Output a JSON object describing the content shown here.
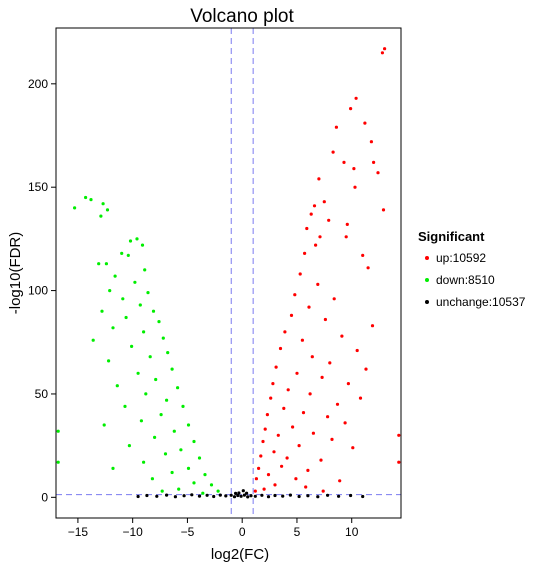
{
  "chart_data": {
    "type": "scatter",
    "title": "Volcano plot",
    "xlabel": "log2(FC)",
    "ylabel": "-log10(FDR)",
    "xlim": [
      -17,
      14.5
    ],
    "ylim": [
      -10,
      227
    ],
    "x_ticks": [
      -15,
      -10,
      -5,
      0,
      5,
      10
    ],
    "y_ticks": [
      0,
      50,
      100,
      150,
      200
    ],
    "grid": false,
    "threshold_lines": {
      "x": [
        -1,
        1
      ],
      "y": 1.3,
      "color": "#7b7bf0",
      "style": "dashed"
    },
    "legend": {
      "title": "Significant",
      "placement": "right",
      "entries": [
        {
          "label": "up:10592",
          "color": "#ff0000"
        },
        {
          "label": "down:8510",
          "color": "#00ee00"
        },
        {
          "label": "unchange:10537",
          "color": "#000000"
        }
      ]
    },
    "series": [
      {
        "name": "up:10592",
        "color": "#ff0000",
        "points": [
          [
            12.8,
            215
          ],
          [
            13.0,
            217
          ],
          [
            10.4,
            193
          ],
          [
            9.9,
            188
          ],
          [
            11.2,
            181
          ],
          [
            8.6,
            179
          ],
          [
            11.8,
            172
          ],
          [
            8.3,
            167
          ],
          [
            12.0,
            162
          ],
          [
            9.3,
            162
          ],
          [
            10.2,
            159
          ],
          [
            12.4,
            157
          ],
          [
            7.0,
            154
          ],
          [
            10.3,
            150
          ],
          [
            12.9,
            139
          ],
          [
            7.5,
            143
          ],
          [
            6.6,
            141
          ],
          [
            6.3,
            137
          ],
          [
            7.9,
            134
          ],
          [
            9.6,
            132
          ],
          [
            5.9,
            130
          ],
          [
            7.1,
            126
          ],
          [
            9.5,
            126
          ],
          [
            6.7,
            122
          ],
          [
            5.7,
            118
          ],
          [
            11.0,
            117
          ],
          [
            11.5,
            111
          ],
          [
            5.3,
            108
          ],
          [
            6.9,
            103
          ],
          [
            4.8,
            98
          ],
          [
            8.4,
            96
          ],
          [
            6.1,
            92
          ],
          [
            11.9,
            83
          ],
          [
            4.5,
            88
          ],
          [
            7.6,
            86
          ],
          [
            3.9,
            80
          ],
          [
            9.1,
            78
          ],
          [
            5.5,
            76
          ],
          [
            10.5,
            71
          ],
          [
            3.5,
            72
          ],
          [
            6.4,
            68
          ],
          [
            8.0,
            65
          ],
          [
            11.3,
            62
          ],
          [
            3.1,
            63
          ],
          [
            5.0,
            60
          ],
          [
            7.3,
            58
          ],
          [
            9.7,
            55
          ],
          [
            2.8,
            55
          ],
          [
            4.2,
            52
          ],
          [
            6.2,
            50
          ],
          [
            10.8,
            48
          ],
          [
            2.6,
            48
          ],
          [
            8.7,
            45
          ],
          [
            3.8,
            43
          ],
          [
            5.6,
            41
          ],
          [
            7.8,
            39
          ],
          [
            2.3,
            40
          ],
          [
            9.4,
            36
          ],
          [
            4.6,
            34
          ],
          [
            2.1,
            33
          ],
          [
            6.5,
            31
          ],
          [
            3.3,
            30
          ],
          [
            8.2,
            28
          ],
          [
            1.9,
            27
          ],
          [
            5.2,
            25
          ],
          [
            10.1,
            24
          ],
          [
            2.9,
            22
          ],
          [
            4.1,
            19
          ],
          [
            7.2,
            18
          ],
          [
            1.7,
            20
          ],
          [
            3.6,
            15
          ],
          [
            6.0,
            13
          ],
          [
            1.5,
            14
          ],
          [
            2.4,
            11
          ],
          [
            4.9,
            9
          ],
          [
            8.9,
            8
          ],
          [
            1.3,
            9
          ],
          [
            3.0,
            6
          ],
          [
            5.8,
            5
          ],
          [
            2.0,
            4
          ],
          [
            1.2,
            3
          ],
          [
            7.4,
            3
          ],
          [
            14.3,
            30
          ],
          [
            14.3,
            17
          ]
        ]
      },
      {
        "name": "down:8510",
        "color": "#00ee00",
        "points": [
          [
            -14.3,
            145
          ],
          [
            -13.8,
            144
          ],
          [
            -15.3,
            140
          ],
          [
            -12.7,
            142
          ],
          [
            -12.3,
            139
          ],
          [
            -12.9,
            136
          ],
          [
            -9.6,
            125
          ],
          [
            -10.2,
            124
          ],
          [
            -9.1,
            122
          ],
          [
            -11.0,
            118
          ],
          [
            -10.4,
            117
          ],
          [
            -13.1,
            113
          ],
          [
            -12.4,
            113
          ],
          [
            -8.9,
            110
          ],
          [
            -11.6,
            107
          ],
          [
            -9.8,
            104
          ],
          [
            -12.1,
            100
          ],
          [
            -8.6,
            99
          ],
          [
            -10.9,
            96
          ],
          [
            -9.3,
            93
          ],
          [
            -12.8,
            90
          ],
          [
            -8.1,
            90
          ],
          [
            -10.6,
            87
          ],
          [
            -7.6,
            85
          ],
          [
            -11.8,
            82
          ],
          [
            -9.0,
            80
          ],
          [
            -7.2,
            77
          ],
          [
            -13.6,
            76
          ],
          [
            -10.1,
            73
          ],
          [
            -6.8,
            70
          ],
          [
            -8.4,
            68
          ],
          [
            -12.2,
            66
          ],
          [
            -6.4,
            62
          ],
          [
            -9.5,
            60
          ],
          [
            -7.9,
            57
          ],
          [
            -11.4,
            54
          ],
          [
            -5.9,
            53
          ],
          [
            -8.8,
            50
          ],
          [
            -6.9,
            47
          ],
          [
            -10.7,
            44
          ],
          [
            -5.4,
            44
          ],
          [
            -7.4,
            40
          ],
          [
            -9.2,
            37
          ],
          [
            -12.6,
            35
          ],
          [
            -4.9,
            35
          ],
          [
            -6.2,
            32
          ],
          [
            -8.0,
            29
          ],
          [
            -4.4,
            27
          ],
          [
            -10.3,
            25
          ],
          [
            -5.6,
            23
          ],
          [
            -7.0,
            21
          ],
          [
            -3.9,
            19
          ],
          [
            -9.0,
            17
          ],
          [
            -4.9,
            14
          ],
          [
            -11.8,
            14
          ],
          [
            -6.4,
            12
          ],
          [
            -3.4,
            11
          ],
          [
            -8.2,
            9
          ],
          [
            -4.4,
            7
          ],
          [
            -2.8,
            6
          ],
          [
            -5.8,
            4
          ],
          [
            -7.3,
            3
          ],
          [
            -2.2,
            3
          ],
          [
            -3.6,
            2
          ],
          [
            -16.8,
            32
          ],
          [
            -16.8,
            17
          ]
        ]
      },
      {
        "name": "unchange:10537",
        "color": "#000000",
        "points": [
          [
            -9.5,
            0.4
          ],
          [
            -8.7,
            0.9
          ],
          [
            -7.8,
            0.5
          ],
          [
            -6.9,
            1.1
          ],
          [
            -6.1,
            0.3
          ],
          [
            -5.3,
            0.8
          ],
          [
            -4.6,
            1.2
          ],
          [
            -3.9,
            0.6
          ],
          [
            -3.2,
            1.0
          ],
          [
            -2.6,
            0.4
          ],
          [
            -2.0,
            1.1
          ],
          [
            -1.5,
            0.7
          ],
          [
            -1.0,
            1.0
          ],
          [
            -0.7,
            0.3
          ],
          [
            -0.4,
            0.9
          ],
          [
            -0.1,
            0.5
          ],
          [
            0.2,
            1.1
          ],
          [
            0.5,
            0.2
          ],
          [
            0.8,
            0.8
          ],
          [
            1.2,
            0.5
          ],
          [
            1.8,
            1.0
          ],
          [
            2.4,
            0.3
          ],
          [
            3.0,
            0.9
          ],
          [
            3.7,
            0.6
          ],
          [
            4.4,
            1.1
          ],
          [
            5.2,
            0.4
          ],
          [
            6.0,
            0.8
          ],
          [
            6.9,
            0.3
          ],
          [
            7.8,
            1.0
          ],
          [
            8.8,
            0.5
          ],
          [
            9.9,
            0.9
          ],
          [
            11.0,
            0.4
          ],
          [
            -0.3,
            2.1
          ],
          [
            0.1,
            3.2
          ],
          [
            0.4,
            2.0
          ],
          [
            -0.6,
            1.9
          ]
        ]
      }
    ]
  }
}
